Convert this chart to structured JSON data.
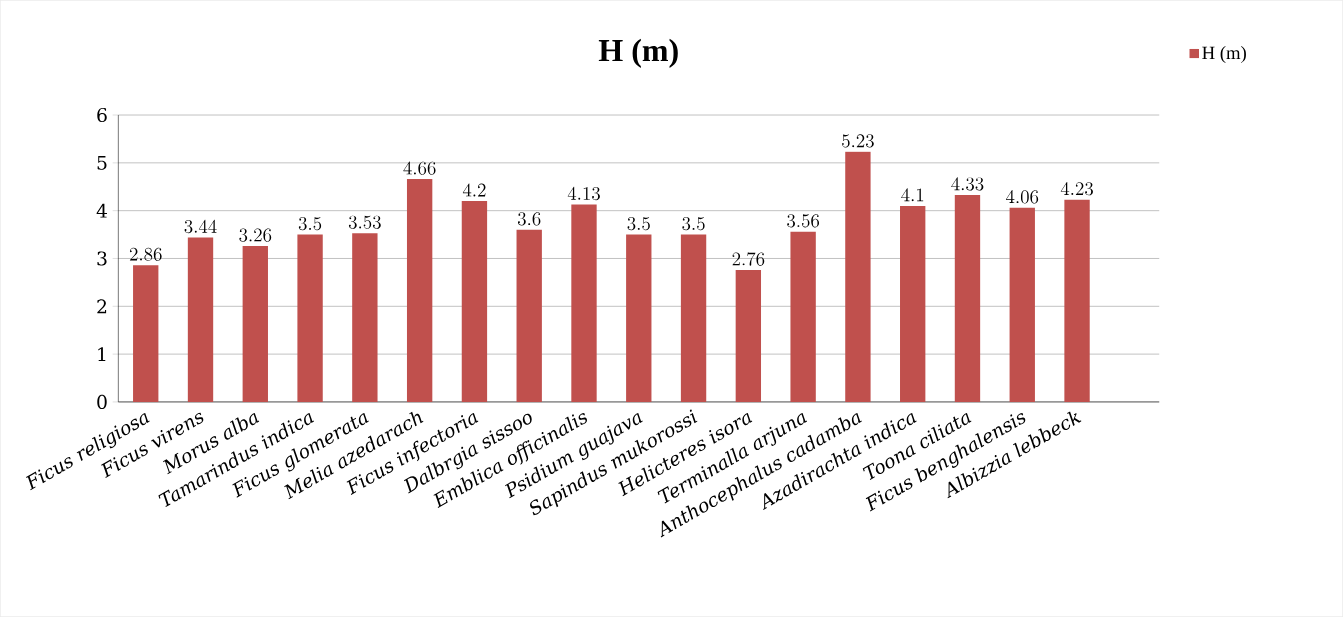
{
  "chart_data": {
    "type": "bar",
    "title": "H (m)",
    "categories": [
      "Ficus religiosa",
      "Ficus virens",
      "Morus alba",
      "Tamarindus indica",
      "Ficus glomerata",
      "Melia azedarach",
      "Ficus infectoria",
      "Dalbrgia sissoo",
      "Emblica officinalis",
      "Psidium guajava",
      "Sapindus mukorossi",
      "Helicteres isora",
      "Terminalla arjuna",
      "Anthocephalus cadamba",
      "Azadirachta indica",
      "Toona ciliata",
      "Ficus benghalensis",
      "Albizzia lebbeck",
      null
    ],
    "series": [
      {
        "name": "H (m)",
        "color": "#c0504d",
        "values": [
          2.86,
          3.44,
          3.26,
          3.5,
          3.53,
          4.66,
          4.2,
          3.6,
          4.13,
          3.5,
          3.5,
          2.76,
          3.56,
          5.23,
          4.1,
          4.33,
          4.06,
          4.23,
          null
        ]
      }
    ],
    "ylim": [
      0,
      6
    ],
    "yticks": [
      0,
      1,
      2,
      3,
      4,
      5,
      6
    ],
    "grid": "y",
    "legend": "top right",
    "data_labels": true
  }
}
